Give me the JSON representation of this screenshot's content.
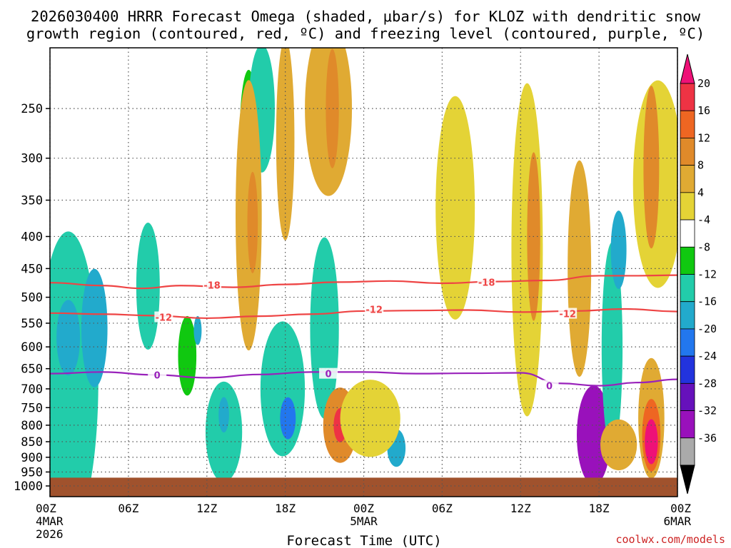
{
  "chart_data": {
    "type": "heatmap",
    "title_line1": "2026030400 HRRR Forecast Omega (shaded, μbar/s) for KLOZ with dendritic snow",
    "title_line2": "growth region (contoured, red, ºC) and freezing level (contoured, purple, ºC)",
    "xlabel": "Forecast Time (UTC)",
    "credit": "coolwx.com/models",
    "x_ticks": [
      {
        "hour": 0,
        "label": "00Z",
        "sub1": "4MAR",
        "sub2": "2026"
      },
      {
        "hour": 6,
        "label": "06Z"
      },
      {
        "hour": 12,
        "label": "12Z"
      },
      {
        "hour": 18,
        "label": "18Z"
      },
      {
        "hour": 24,
        "label": "00Z",
        "sub1": "5MAR"
      },
      {
        "hour": 30,
        "label": "06Z"
      },
      {
        "hour": 36,
        "label": "12Z"
      },
      {
        "hour": 42,
        "label": "18Z"
      },
      {
        "hour": 48,
        "label": "00Z",
        "sub1": "6MAR"
      }
    ],
    "x_range_hours": [
      0,
      48
    ],
    "y_ticks_hpa": [
      250,
      300,
      350,
      400,
      450,
      500,
      550,
      600,
      650,
      700,
      750,
      800,
      850,
      900,
      950,
      1000
    ],
    "y_range_hpa": [
      200,
      1040
    ],
    "ground_top_hpa": 970,
    "colorbar": {
      "tick_labels": [
        "20",
        "16",
        "12",
        "8",
        "4",
        "-4",
        "-8",
        "-12",
        "-16",
        "-20",
        "-24",
        "-28",
        "-32",
        "-36"
      ],
      "colors": [
        "#ee1177",
        "#ee3344",
        "#ee6622",
        "#e08a2a",
        "#e0aa33",
        "#e4d336",
        "#ffffff",
        "#10c810",
        "#22ccaa",
        "#22aacc",
        "#2277ee",
        "#2233dd",
        "#6611bb",
        "#9911bb",
        "#aaaaaa",
        "#000000"
      ]
    },
    "contours": [
      {
        "name": "dendritic-top",
        "label": "-18",
        "color": "#ee4444",
        "hours": [
          0,
          4,
          7,
          10,
          14,
          18,
          22,
          26,
          30,
          34,
          38,
          42,
          45,
          48
        ],
        "values": [
          474,
          479,
          484,
          479,
          482,
          477,
          473,
          471,
          475,
          472,
          470,
          462,
          462,
          461
        ],
        "label_positions": [
          {
            "hour": 12.4,
            "hpa": 478
          },
          {
            "hour": 33.4,
            "hpa": 473
          }
        ]
      },
      {
        "name": "dendritic-bottom",
        "label": "-12",
        "color": "#ee4444",
        "hours": [
          0,
          4,
          8,
          12,
          16,
          20,
          24,
          28,
          32,
          36,
          40,
          44,
          48
        ],
        "values": [
          530,
          532,
          535,
          540,
          536,
          532,
          526,
          525,
          524,
          528,
          526,
          522,
          527
        ],
        "label_positions": [
          {
            "hour": 8.7,
            "hpa": 538
          },
          {
            "hour": 24.8,
            "hpa": 523
          },
          {
            "hour": 39.6,
            "hpa": 531
          }
        ]
      },
      {
        "name": "freezing-level",
        "label": "0",
        "color": "#9922bb",
        "hours": [
          0,
          4,
          8,
          12,
          16,
          20,
          24,
          28,
          32,
          36,
          39,
          42,
          45,
          48
        ],
        "values": [
          662,
          658,
          665,
          672,
          664,
          658,
          658,
          662,
          661,
          660,
          686,
          692,
          684,
          676
        ],
        "label_positions": [
          {
            "hour": 8.2,
            "hpa": 665
          },
          {
            "hour": 21.3,
            "hpa": 662
          },
          {
            "hour": 38.2,
            "hpa": 692
          }
        ]
      }
    ],
    "omega_features": [
      {
        "hour": 1.4,
        "hpa": 680,
        "rh": 2.3,
        "rp": 340,
        "value": -10
      },
      {
        "hour": 1.4,
        "hpa": 580,
        "rh": 0.9,
        "rp": 80,
        "value": -12
      },
      {
        "hour": 3.4,
        "hpa": 560,
        "rh": 1.0,
        "rp": 120,
        "value": -12
      },
      {
        "hour": 7.5,
        "hpa": 480,
        "rh": 0.9,
        "rp": 110,
        "value": -8
      },
      {
        "hour": 10.5,
        "hpa": 620,
        "rh": 0.7,
        "rp": 90,
        "value": -6
      },
      {
        "hour": 11.3,
        "hpa": 565,
        "rh": 0.3,
        "rp": 30,
        "value": -12
      },
      {
        "hour": 13.3,
        "hpa": 820,
        "rh": 1.4,
        "rp": 150,
        "value": -10
      },
      {
        "hour": 13.3,
        "hpa": 770,
        "rh": 0.4,
        "rp": 50,
        "value": -14
      },
      {
        "hour": 15.2,
        "hpa": 280,
        "rh": 0.7,
        "rp": 70,
        "value": -6
      },
      {
        "hour": 16.2,
        "hpa": 250,
        "rh": 1.0,
        "rp": 70,
        "value": -10
      },
      {
        "hour": 17.8,
        "hpa": 700,
        "rh": 1.7,
        "rp": 170,
        "value": -10
      },
      {
        "hour": 18.2,
        "hpa": 780,
        "rh": 0.6,
        "rp": 60,
        "value": -16
      },
      {
        "hour": 21.0,
        "hpa": 560,
        "rh": 1.1,
        "rp": 180,
        "value": -8
      },
      {
        "hour": 26.5,
        "hpa": 870,
        "rh": 0.7,
        "rp": 60,
        "value": -12
      },
      {
        "hour": 41.6,
        "hpa": 830,
        "rh": 1.3,
        "rp": 150,
        "value": -28
      },
      {
        "hour": 43.0,
        "hpa": 600,
        "rh": 0.8,
        "rp": 220,
        "value": -8
      },
      {
        "hour": 43.5,
        "hpa": 420,
        "rh": 0.6,
        "rp": 60,
        "value": -12
      },
      {
        "hour": 18.0,
        "hpa": 280,
        "rh": 0.7,
        "rp": 140,
        "value": 6
      },
      {
        "hour": 21.3,
        "hpa": 250,
        "rh": 1.8,
        "rp": 130,
        "value": 6
      },
      {
        "hour": 21.6,
        "hpa": 250,
        "rh": 0.5,
        "rp": 60,
        "value": 10
      },
      {
        "hour": 15.2,
        "hpa": 370,
        "rh": 1.0,
        "rp": 170,
        "value": 6
      },
      {
        "hour": 15.5,
        "hpa": 380,
        "rh": 0.4,
        "rp": 70,
        "value": 10
      },
      {
        "hour": 22.2,
        "hpa": 800,
        "rh": 1.3,
        "rp": 110,
        "value": 8
      },
      {
        "hour": 22.2,
        "hpa": 800,
        "rh": 0.5,
        "rp": 50,
        "value": 16
      },
      {
        "hour": 24.5,
        "hpa": 780,
        "rh": 2.3,
        "rp": 110,
        "value": 5
      },
      {
        "hour": 31.0,
        "hpa": 360,
        "rh": 1.5,
        "rp": 140,
        "value": 5
      },
      {
        "hour": 36.5,
        "hpa": 420,
        "rh": 1.2,
        "rp": 260,
        "value": 5
      },
      {
        "hour": 37.0,
        "hpa": 400,
        "rh": 0.5,
        "rp": 120,
        "value": 8
      },
      {
        "hour": 40.5,
        "hpa": 450,
        "rh": 0.9,
        "rp": 170,
        "value": 6
      },
      {
        "hour": 46.5,
        "hpa": 330,
        "rh": 1.9,
        "rp": 120,
        "value": 5
      },
      {
        "hour": 46.0,
        "hpa": 310,
        "rh": 0.6,
        "rp": 90,
        "value": 10
      },
      {
        "hour": 46.0,
        "hpa": 780,
        "rh": 1.0,
        "rp": 170,
        "value": 6
      },
      {
        "hour": 46.0,
        "hpa": 830,
        "rh": 0.7,
        "rp": 110,
        "value": 14
      },
      {
        "hour": 46.0,
        "hpa": 850,
        "rh": 0.5,
        "rp": 70,
        "value": 20
      },
      {
        "hour": 43.5,
        "hpa": 860,
        "rh": 1.4,
        "rp": 80,
        "value": 6
      }
    ]
  }
}
